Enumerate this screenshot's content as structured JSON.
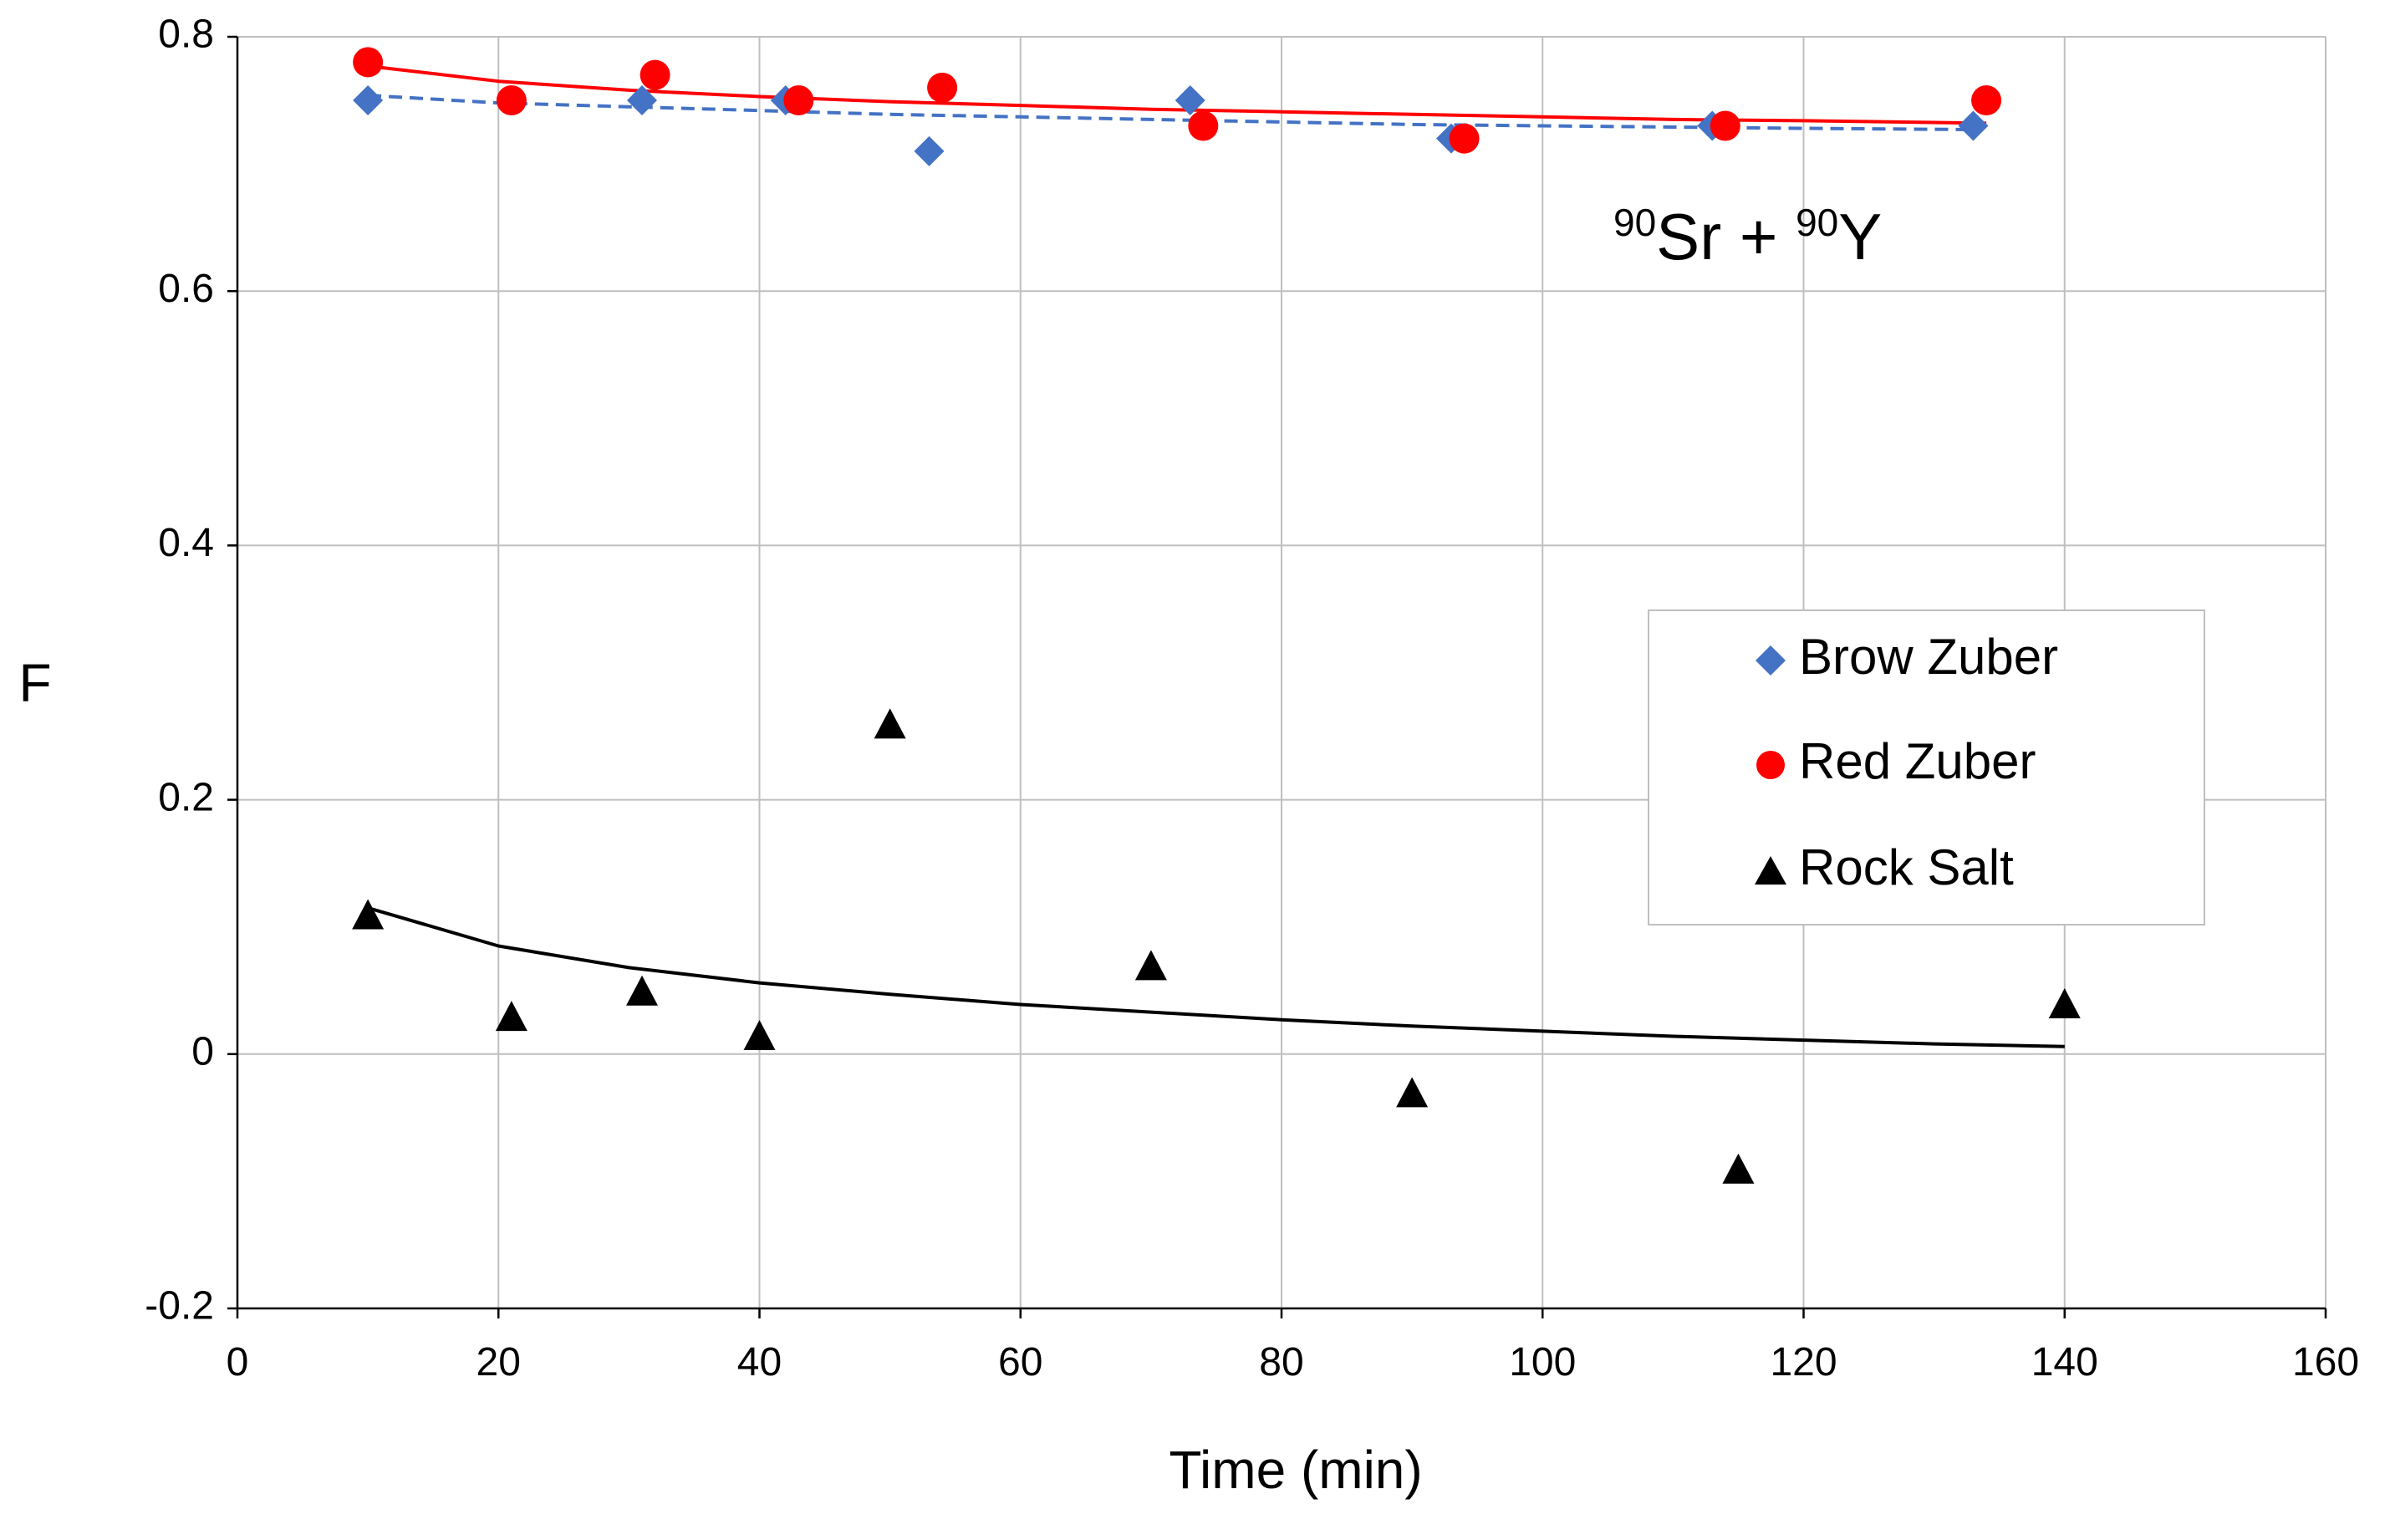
{
  "chart_data": {
    "type": "scatter",
    "title": "",
    "xlabel": "Time (min)",
    "ylabel": "F",
    "xlim": [
      0,
      160
    ],
    "ylim": [
      -0.2,
      0.8
    ],
    "xticks": [
      0,
      20,
      40,
      60,
      80,
      100,
      120,
      140,
      160
    ],
    "xtick_labels": [
      "0",
      "20",
      "40",
      "60",
      "80",
      "100",
      "120",
      "140",
      "160"
    ],
    "yticks": [
      -0.2,
      0,
      0.2,
      0.4,
      0.6,
      0.8
    ],
    "ytick_labels": [
      "-0.2",
      "0",
      "0.2",
      "0.4",
      "0.6",
      "0.8"
    ],
    "grid": true,
    "legend_position": "right-middle",
    "annotation": {
      "sup1": "90",
      "base1": "Sr + ",
      "sup2": "90",
      "base2": "Y"
    },
    "series": [
      {
        "name": "Brow Zuber",
        "marker": "diamond",
        "color": "#4472C4",
        "points": [
          {
            "x": 10,
            "y": 0.75
          },
          {
            "x": 21,
            "y": 0.75
          },
          {
            "x": 31,
            "y": 0.75
          },
          {
            "x": 42,
            "y": 0.75
          },
          {
            "x": 53,
            "y": 0.71
          },
          {
            "x": 73,
            "y": 0.75
          },
          {
            "x": 93,
            "y": 0.72
          },
          {
            "x": 113,
            "y": 0.73
          },
          {
            "x": 133,
            "y": 0.73
          }
        ],
        "trend": {
          "style": "dashed",
          "color": "#4472C4",
          "points": [
            {
              "x": 10,
              "y": 0.754
            },
            {
              "x": 20,
              "y": 0.748
            },
            {
              "x": 30,
              "y": 0.745
            },
            {
              "x": 40,
              "y": 0.742
            },
            {
              "x": 50,
              "y": 0.739
            },
            {
              "x": 60,
              "y": 0.737
            },
            {
              "x": 70,
              "y": 0.735
            },
            {
              "x": 80,
              "y": 0.733
            },
            {
              "x": 90,
              "y": 0.731
            },
            {
              "x": 100,
              "y": 0.73
            },
            {
              "x": 110,
              "y": 0.729
            },
            {
              "x": 120,
              "y": 0.728
            },
            {
              "x": 133,
              "y": 0.727
            }
          ]
        }
      },
      {
        "name": "Red Zuber",
        "marker": "circle",
        "color": "#FF0000",
        "points": [
          {
            "x": 10,
            "y": 0.78
          },
          {
            "x": 21,
            "y": 0.75
          },
          {
            "x": 32,
            "y": 0.77
          },
          {
            "x": 43,
            "y": 0.75
          },
          {
            "x": 54,
            "y": 0.76
          },
          {
            "x": 74,
            "y": 0.73
          },
          {
            "x": 94,
            "y": 0.72
          },
          {
            "x": 114,
            "y": 0.73
          },
          {
            "x": 134,
            "y": 0.75
          }
        ],
        "trend": {
          "style": "solid",
          "color": "#FF0000",
          "points": [
            {
              "x": 10,
              "y": 0.777
            },
            {
              "x": 20,
              "y": 0.765
            },
            {
              "x": 30,
              "y": 0.758
            },
            {
              "x": 40,
              "y": 0.753
            },
            {
              "x": 50,
              "y": 0.749
            },
            {
              "x": 60,
              "y": 0.746
            },
            {
              "x": 70,
              "y": 0.743
            },
            {
              "x": 80,
              "y": 0.741
            },
            {
              "x": 90,
              "y": 0.739
            },
            {
              "x": 100,
              "y": 0.737
            },
            {
              "x": 110,
              "y": 0.735
            },
            {
              "x": 120,
              "y": 0.734
            },
            {
              "x": 134,
              "y": 0.732
            }
          ]
        }
      },
      {
        "name": "Rock Salt",
        "marker": "triangle",
        "color": "#000000",
        "points": [
          {
            "x": 10,
            "y": 0.11
          },
          {
            "x": 21,
            "y": 0.03
          },
          {
            "x": 31,
            "y": 0.05
          },
          {
            "x": 40,
            "y": 0.015
          },
          {
            "x": 50,
            "y": 0.26
          },
          {
            "x": 70,
            "y": 0.07
          },
          {
            "x": 90,
            "y": -0.03
          },
          {
            "x": 115,
            "y": -0.09
          },
          {
            "x": 140,
            "y": 0.04
          }
        ],
        "trend": {
          "style": "solid",
          "color": "#000000",
          "points": [
            {
              "x": 10,
              "y": 0.115
            },
            {
              "x": 20,
              "y": 0.085
            },
            {
              "x": 30,
              "y": 0.068
            },
            {
              "x": 40,
              "y": 0.056
            },
            {
              "x": 50,
              "y": 0.047
            },
            {
              "x": 60,
              "y": 0.039
            },
            {
              "x": 70,
              "y": 0.033
            },
            {
              "x": 80,
              "y": 0.027
            },
            {
              "x": 90,
              "y": 0.022
            },
            {
              "x": 100,
              "y": 0.018
            },
            {
              "x": 110,
              "y": 0.014
            },
            {
              "x": 120,
              "y": 0.011
            },
            {
              "x": 130,
              "y": 0.008
            },
            {
              "x": 140,
              "y": 0.006
            }
          ]
        }
      }
    ]
  }
}
